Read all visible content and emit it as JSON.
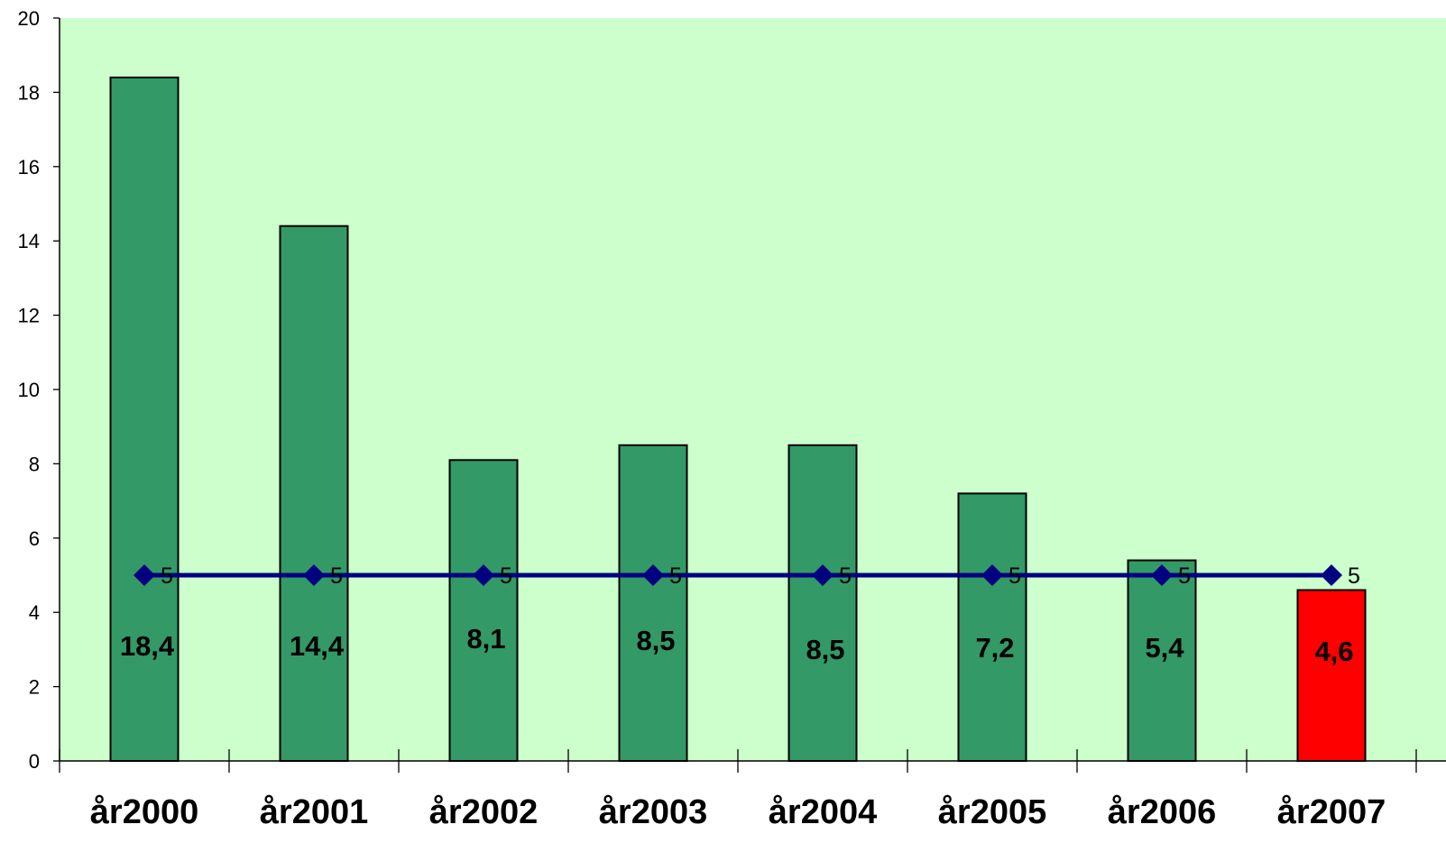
{
  "chart_data": {
    "type": "bar",
    "title": "",
    "xlabel": "",
    "ylabel": "",
    "ylim": [
      0,
      20
    ],
    "yticks": [
      0,
      2,
      4,
      6,
      8,
      10,
      12,
      14,
      16,
      18,
      20
    ],
    "grid": false,
    "categories": [
      "år2000",
      "år2001",
      "år2002",
      "år2003",
      "år2004",
      "år2005",
      "år2006",
      "år2007"
    ],
    "series": [
      {
        "type": "bar",
        "values": [
          18.4,
          14.4,
          8.1,
          8.5,
          8.5,
          7.2,
          5.4,
          4.6
        ],
        "labels": [
          "18,4",
          "14,4",
          "8,1",
          "8,5",
          "8,5",
          "7,2",
          "5,4",
          "4,6"
        ],
        "colors": [
          "#339966",
          "#339966",
          "#339966",
          "#339966",
          "#339966",
          "#339966",
          "#339966",
          "#ff0000"
        ]
      },
      {
        "type": "line",
        "values": [
          5,
          5,
          5,
          5,
          5,
          5,
          5,
          5
        ],
        "labels": [
          "5",
          "5",
          "5",
          "5",
          "5",
          "5",
          "5",
          "5"
        ],
        "color": "#000080",
        "marker": "diamond"
      }
    ],
    "plot_background": "#ccffcc"
  }
}
